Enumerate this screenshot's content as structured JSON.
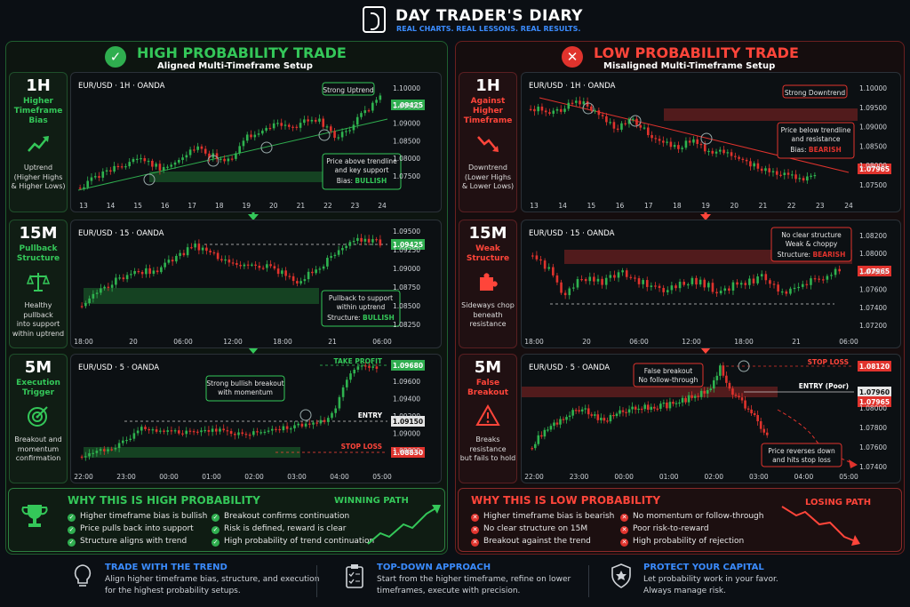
{
  "header": {
    "brand": "DAY TRADER'S DIARY",
    "tagline": "REAL CHARTS. REAL LESSONS. REAL RESULTS."
  },
  "high": {
    "title": "HIGH PROBABILITY TRADE",
    "subtitle": "Aligned Multi-Timeframe Setup",
    "rows": [
      {
        "tf": "1H",
        "label": "Higher\nTimeframe\nBias",
        "desc": "Uptrend\n(Higher Highs\n& Higher Lows)",
        "icon": "trend-up-icon"
      },
      {
        "tf": "15M",
        "label": "Pullback\nStructure",
        "desc": "Healthy pullback\ninto support\nwithin uptrend",
        "icon": "scale-icon"
      },
      {
        "tf": "5M",
        "label": "Execution\nTrigger",
        "desc": "Breakout and\nmomentum\nconfirmation",
        "icon": "target-icon"
      }
    ],
    "charts": [
      {
        "title": "EUR/USD · 1H · OANDA",
        "note_top": "Strong Uptrend",
        "note": "Price above trendline\nand key support",
        "note_label": "Bias:",
        "note_value": "BULLISH",
        "price_tag": "1.09425",
        "yticks": [
          "1.10000",
          "1.09500",
          "1.09000",
          "1.08500",
          "1.08000",
          "1.07500"
        ],
        "xticks": [
          "13",
          "14",
          "15",
          "16",
          "17",
          "18",
          "19",
          "20",
          "21",
          "22",
          "23",
          "24"
        ]
      },
      {
        "title": "EUR/USD · 15 · OANDA",
        "note": "Pullback to support\nwithin uptrend",
        "note_label": "Structure:",
        "note_value": "BULLISH",
        "price_tag": "1.09425",
        "yticks": [
          "1.09500",
          "1.09250",
          "1.09000",
          "1.08750",
          "1.08500",
          "1.08250"
        ],
        "xticks": [
          "18:00",
          "20",
          "06:00",
          "12:00",
          "18:00",
          "21",
          "06:00"
        ]
      },
      {
        "title": "EUR/USD · 5 · OANDA",
        "note": "Strong bullish breakout\nwith momentum",
        "tp_label": "TAKE PROFIT",
        "tp_price": "1.09680",
        "entry_label": "ENTRY",
        "entry_price": "1.09150",
        "sl_label": "STOP LOSS",
        "sl_price": "1.08830",
        "yticks": [
          "1.09600",
          "1.09400",
          "1.09200",
          "1.09000",
          "1.08800"
        ],
        "xticks": [
          "22:00",
          "23:00",
          "00:00",
          "01:00",
          "02:00",
          "03:00",
          "04:00",
          "05:00"
        ]
      }
    ],
    "why_title": "WHY THIS IS HIGH PROBABILITY",
    "why_items_left": [
      "Higher timeframe bias is bullish",
      "Price pulls back into support",
      "Structure aligns with trend"
    ],
    "why_items_right": [
      "Breakout confirms continuation",
      "Risk is defined, reward is clear",
      "High probability of trend continuation"
    ],
    "path_label": "WINNING PATH",
    "color": "#34c759"
  },
  "low": {
    "title": "LOW PROBABILITY TRADE",
    "subtitle": "Misaligned Multi-Timeframe Setup",
    "rows": [
      {
        "tf": "1H",
        "label": "Against\nHigher\nTimeframe",
        "desc": "Downtrend\n(Lower Highs\n& Lower Lows)",
        "icon": "trend-down-icon"
      },
      {
        "tf": "15M",
        "label": "Weak\nStructure",
        "desc": "Sideways chop\nbeneath\nresistance",
        "icon": "puzzle-icon"
      },
      {
        "tf": "5M",
        "label": "False\nBreakout",
        "desc": "Breaks resistance\nbut fails to hold",
        "icon": "warning-icon"
      }
    ],
    "charts": [
      {
        "title": "EUR/USD · 1H · OANDA",
        "note_top": "Strong Downtrend",
        "note": "Price below trendline\nand resistance",
        "note_label": "Bias:",
        "note_value": "BEARISH",
        "price_tag": "1.07965",
        "yticks": [
          "1.10000",
          "1.09500",
          "1.09000",
          "1.08500",
          "1.08000",
          "1.07500"
        ],
        "xticks": [
          "13",
          "14",
          "15",
          "16",
          "17",
          "18",
          "19",
          "20",
          "21",
          "22",
          "23",
          "24"
        ]
      },
      {
        "title": "EUR/USD · 15 · OANDA",
        "note": "No clear structure\nWeak & choppy",
        "note_label": "Structure:",
        "note_value": "BEARISH",
        "price_tag": "1.07965",
        "yticks": [
          "1.08200",
          "1.08000",
          "1.07800",
          "1.07600",
          "1.07400",
          "1.07200"
        ],
        "xticks": [
          "18:00",
          "20",
          "06:00",
          "12:00",
          "18:00",
          "21",
          "06:00"
        ]
      },
      {
        "title": "EUR/USD · 5 · OANDA",
        "note": "False breakout\nNo follow-through",
        "note2": "Price reverses down\nand hits stop loss",
        "sl_label": "STOP LOSS",
        "sl_price": "1.08120",
        "entry_label": "ENTRY (Poor)",
        "entry_price": "1.07960",
        "price_tag": "1.07965",
        "yticks": [
          "1.08000",
          "1.07800",
          "1.07600",
          "1.07400"
        ],
        "xticks": [
          "22:00",
          "23:00",
          "00:00",
          "01:00",
          "02:00",
          "03:00",
          "04:00",
          "05:00"
        ]
      }
    ],
    "why_title": "WHY THIS IS LOW PROBABILITY",
    "why_items_left": [
      "Higher timeframe bias is bearish",
      "No clear structure on 15M",
      "Breakout against the trend"
    ],
    "why_items_right": [
      "No momentum or follow-through",
      "Poor risk-to-reward",
      "High probability of rejection"
    ],
    "path_label": "LOSING PATH",
    "color": "#ff453a"
  },
  "footer": [
    {
      "title": "TRADE WITH THE TREND",
      "text": "Align higher timeframe bias, structure, and execution\nfor the highest probability setups.",
      "icon": "lightbulb-icon"
    },
    {
      "title": "TOP-DOWN APPROACH",
      "text": "Start from the higher timeframe, refine on lower\ntimeframes, execute with precision.",
      "icon": "clipboard-icon"
    },
    {
      "title": "PROTECT YOUR CAPITAL",
      "text": "Let probability work in your favor.\nAlways manage risk.",
      "icon": "shield-icon"
    }
  ]
}
